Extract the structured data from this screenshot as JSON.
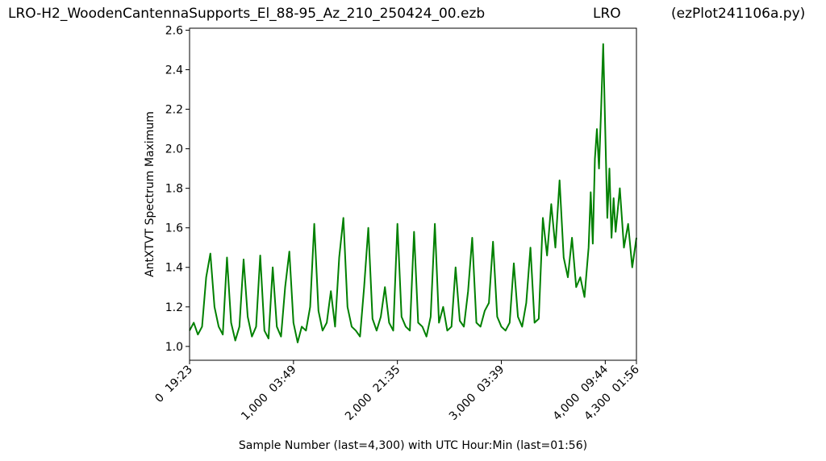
{
  "titles": {
    "left": "LRO-H2_WoodenCantennaSupports_El_88-95_Az_210_250424_00.ezb",
    "center": "LRO",
    "right": "(ezPlot241106a.py)"
  },
  "chart_data": {
    "type": "line",
    "xlabel": "Sample Number (last=4,300) with UTC Hour:Min (last=01:56)",
    "ylabel": "AntXTVT Spectrum Maximum",
    "xlim": [
      0,
      4300
    ],
    "ylim": [
      0.93,
      2.61
    ],
    "yticks": [
      1.0,
      1.2,
      1.4,
      1.6,
      1.8,
      2.0,
      2.2,
      2.4,
      2.6
    ],
    "xticks": [
      {
        "value": 0,
        "label": "0  19:23"
      },
      {
        "value": 1000,
        "label": "1,000  03:49"
      },
      {
        "value": 2000,
        "label": "2,000  21:35"
      },
      {
        "value": 3000,
        "label": "3,000  03:39"
      },
      {
        "value": 4000,
        "label": "4,000  09:44"
      },
      {
        "value": 4300,
        "label": "4,300  01:56"
      }
    ],
    "line_color": "#008000",
    "grid": false,
    "series": [
      {
        "x": [
          0,
          40,
          80,
          120,
          160,
          200,
          240,
          280,
          320,
          360,
          400,
          440,
          480,
          520,
          560,
          600,
          640,
          680,
          720,
          760,
          800,
          840,
          880,
          920,
          960,
          1000,
          1040,
          1080,
          1120,
          1160,
          1200,
          1240,
          1280,
          1320,
          1360,
          1400,
          1440,
          1480,
          1520,
          1560,
          1600,
          1640,
          1680,
          1720,
          1760,
          1800,
          1840,
          1880,
          1920,
          1960,
          2000,
          2040,
          2080,
          2120,
          2160,
          2200,
          2240,
          2280,
          2320,
          2360,
          2400,
          2440,
          2480,
          2520,
          2560,
          2600,
          2640,
          2680,
          2720,
          2760,
          2800,
          2840,
          2880,
          2920,
          2960,
          3000,
          3040,
          3080,
          3120,
          3160,
          3200,
          3240,
          3280,
          3320,
          3360,
          3400,
          3440,
          3480,
          3520,
          3560,
          3600,
          3640,
          3680,
          3720,
          3760,
          3800,
          3840,
          3860,
          3880,
          3900,
          3920,
          3940,
          3960,
          3980,
          4000,
          4020,
          4040,
          4060,
          4080,
          4100,
          4140,
          4180,
          4220,
          4260,
          4300
        ],
        "y": [
          1.08,
          1.12,
          1.06,
          1.1,
          1.35,
          1.47,
          1.2,
          1.1,
          1.06,
          1.45,
          1.12,
          1.03,
          1.1,
          1.44,
          1.15,
          1.05,
          1.1,
          1.46,
          1.08,
          1.04,
          1.4,
          1.1,
          1.05,
          1.3,
          1.48,
          1.12,
          1.02,
          1.1,
          1.08,
          1.2,
          1.62,
          1.18,
          1.08,
          1.12,
          1.28,
          1.1,
          1.45,
          1.65,
          1.2,
          1.1,
          1.08,
          1.05,
          1.3,
          1.6,
          1.14,
          1.08,
          1.15,
          1.3,
          1.12,
          1.08,
          1.62,
          1.15,
          1.1,
          1.08,
          1.58,
          1.12,
          1.1,
          1.05,
          1.15,
          1.62,
          1.12,
          1.2,
          1.08,
          1.1,
          1.4,
          1.13,
          1.1,
          1.28,
          1.55,
          1.12,
          1.1,
          1.18,
          1.22,
          1.53,
          1.15,
          1.1,
          1.08,
          1.12,
          1.42,
          1.15,
          1.1,
          1.22,
          1.5,
          1.12,
          1.14,
          1.65,
          1.46,
          1.72,
          1.5,
          1.84,
          1.45,
          1.35,
          1.55,
          1.3,
          1.35,
          1.25,
          1.5,
          1.78,
          1.52,
          1.95,
          2.1,
          1.9,
          2.2,
          2.53,
          2.1,
          1.65,
          1.9,
          1.55,
          1.75,
          1.58,
          1.8,
          1.5,
          1.62,
          1.4,
          1.55
        ]
      }
    ]
  }
}
